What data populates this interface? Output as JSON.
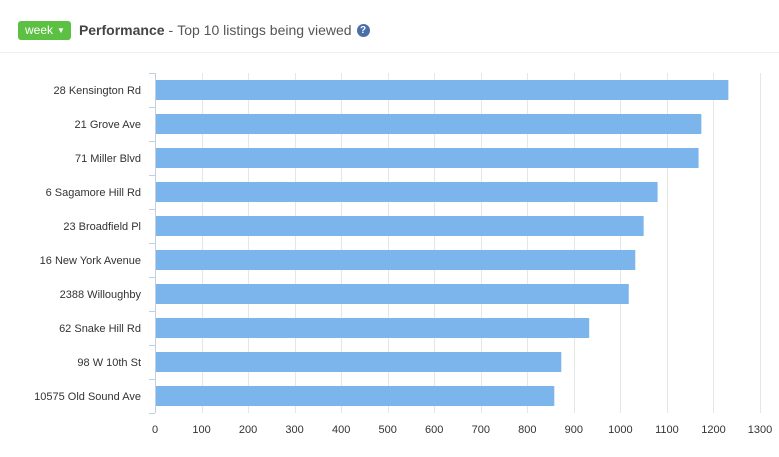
{
  "header": {
    "range_button_label": "week",
    "title": "Performance",
    "separator": "-",
    "subtitle": "Top 10 listings being viewed",
    "help_icon": "question-circle-icon"
  },
  "colors": {
    "accent": "#5cc143",
    "bar": "#7cb5ec",
    "grid": "#e6e6e6",
    "help": "#4a6ea8"
  },
  "chart_data": {
    "type": "bar",
    "orientation": "horizontal",
    "title": "",
    "xlabel": "",
    "ylabel": "",
    "categories": [
      "28 Kensington Rd",
      "21 Grove Ave",
      "71 Miller Blvd",
      "6 Sagamore Hill Rd",
      "23 Broadfield Pl",
      "16 New York Avenue",
      "2388 Willoughby",
      "62 Snake Hill Rd",
      "98 W 10th St",
      "10575 Old Sound Ave"
    ],
    "values": [
      1232,
      1174,
      1168,
      1080,
      1050,
      1032,
      1018,
      933,
      873,
      858
    ],
    "xlim": [
      0,
      1300
    ],
    "xticks": [
      "0",
      "100",
      "200",
      "300",
      "400",
      "500",
      "600",
      "700",
      "800",
      "900",
      "1000",
      "1100",
      "1200",
      "1300"
    ],
    "grid": true,
    "legend": false
  }
}
